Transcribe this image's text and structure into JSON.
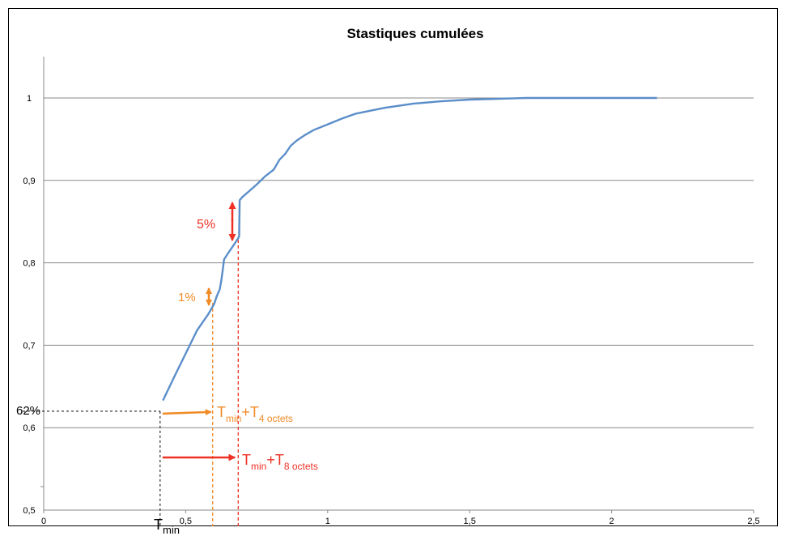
{
  "chart_data": {
    "type": "line",
    "title": "Stastiques cumulées",
    "xlabel": "",
    "ylabel": "",
    "xlim": [
      0,
      2.5
    ],
    "ylim": [
      0.5,
      1.05
    ],
    "x_ticks": [
      0,
      0.5,
      1,
      1.5,
      2,
      2.5
    ],
    "x_tick_labels": [
      "0",
      "0,5",
      "1",
      "1,5",
      "2",
      "2,5"
    ],
    "y_ticks": [
      0.5,
      0.6,
      0.7,
      0.8,
      0.9,
      1
    ],
    "y_tick_labels": [
      "0,5",
      "0,6",
      "0,7",
      "0,8",
      "0,9",
      "1"
    ],
    "grid": "horizontal",
    "legend": "none",
    "colors": {
      "series": "#5b8ec9",
      "orange": "#f08a24",
      "red": "#ee3124",
      "guide_black": "#000000",
      "grid": "#8a8a8a"
    },
    "series": [
      {
        "values": [
          [
            0.42,
            0.633
          ],
          [
            0.46,
            0.662
          ],
          [
            0.5,
            0.69
          ],
          [
            0.54,
            0.718
          ],
          [
            0.58,
            0.738
          ],
          [
            0.6,
            0.75
          ],
          [
            0.61,
            0.76
          ],
          [
            0.62,
            0.768
          ],
          [
            0.625,
            0.778
          ],
          [
            0.63,
            0.79
          ],
          [
            0.635,
            0.804
          ],
          [
            0.65,
            0.812
          ],
          [
            0.67,
            0.822
          ],
          [
            0.685,
            0.83
          ],
          [
            0.688,
            0.832
          ],
          [
            0.69,
            0.876
          ],
          [
            0.7,
            0.88
          ],
          [
            0.72,
            0.886
          ],
          [
            0.75,
            0.895
          ],
          [
            0.78,
            0.905
          ],
          [
            0.81,
            0.913
          ],
          [
            0.83,
            0.925
          ],
          [
            0.85,
            0.932
          ],
          [
            0.87,
            0.942
          ],
          [
            0.89,
            0.948
          ],
          [
            0.92,
            0.955
          ],
          [
            0.95,
            0.961
          ],
          [
            1.0,
            0.968
          ],
          [
            1.05,
            0.975
          ],
          [
            1.1,
            0.981
          ],
          [
            1.2,
            0.988
          ],
          [
            1.3,
            0.993
          ],
          [
            1.4,
            0.996
          ],
          [
            1.5,
            0.998
          ],
          [
            1.6,
            0.999
          ],
          [
            1.7,
            1.0
          ],
          [
            1.9,
            1.0
          ],
          [
            2.16,
            1.0
          ]
        ]
      }
    ],
    "annotations": {
      "pct_62": "62%",
      "pct_62_value": 0.62,
      "tmin_x": 0.41,
      "t4_x": 0.595,
      "t8_x": 0.685,
      "pct_1": "1%",
      "pct_5": "5%",
      "tmin_label": {
        "main": "T",
        "sub": "min"
      },
      "t4_label": {
        "t1": "T",
        "s1": "min",
        "plus": "+",
        "t2": "T",
        "s2": "4 octets"
      },
      "t8_label": {
        "t1": "T",
        "s1": "min",
        "plus": "+",
        "t2": "T",
        "s2": "8 octets"
      }
    }
  }
}
